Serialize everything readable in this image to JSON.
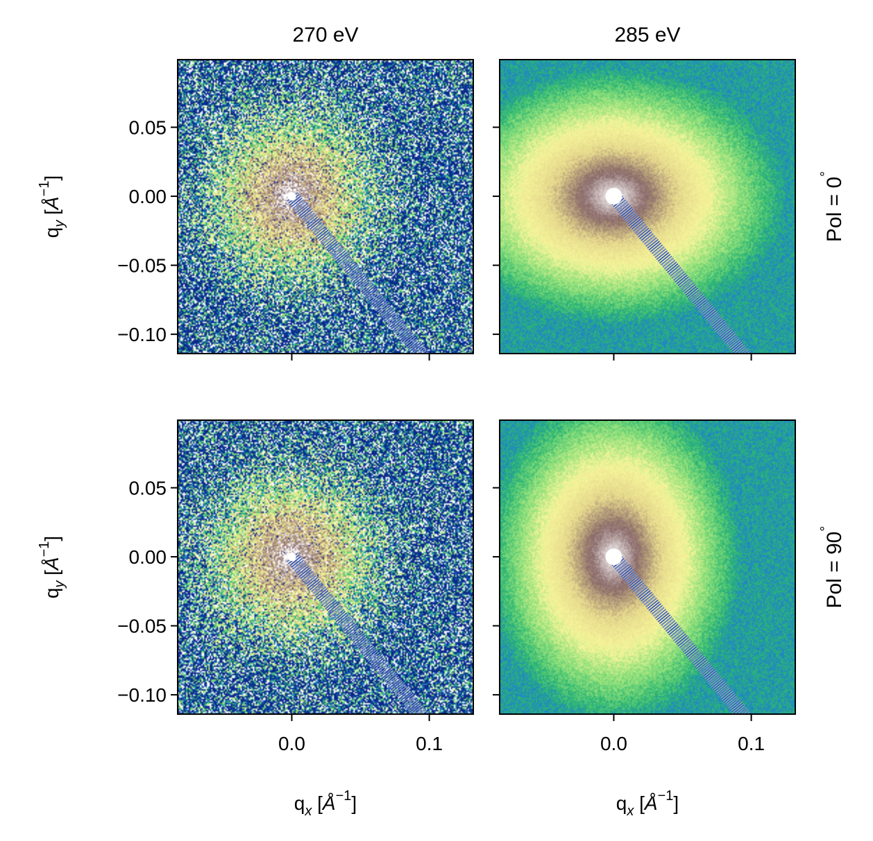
{
  "chart_data": {
    "type": "heatmap",
    "description_layout": "2x2 grid of small-angle scattering detector images (log intensity)",
    "column_titles": [
      "270 eV",
      "285 eV"
    ],
    "row_titles": [
      "Pol = 0",
      "Pol = 90"
    ],
    "row_title_suffix": "°",
    "xlabel": {
      "main": "q",
      "sub": "x",
      "unit_open": " [",
      "unit": "Å",
      "exp": "−1",
      "unit_close": "]"
    },
    "ylabel": {
      "main": "q",
      "sub": "y",
      "unit_open": " [",
      "unit": "Å",
      "exp": "−1",
      "unit_close": "]"
    },
    "xlim": [
      -0.083,
      0.132
    ],
    "ylim": [
      -0.114,
      0.099
    ],
    "xticks": [
      0.0,
      0.1
    ],
    "xtick_labels": [
      "0.0",
      "0.1"
    ],
    "yticks": [
      0.05,
      0.0,
      -0.05,
      -0.1
    ],
    "ytick_labels": [
      "0.05",
      "0.00",
      "−0.05",
      "−0.10"
    ],
    "beamstop": {
      "start": [
        0.0,
        0.0
      ],
      "end": [
        0.097,
        -0.118
      ]
    },
    "colormap": [
      "#0b2a8c",
      "#1f7fd0",
      "#2bb673",
      "#8fe07a",
      "#f6f59a",
      "#e6d98d",
      "#8a6a6a",
      "#ffffff"
    ],
    "panels": [
      {
        "row": 0,
        "col": 0,
        "energy": "270 eV",
        "polarization_deg": 0,
        "pattern": "isotropic-ring",
        "noise": 0.85
      },
      {
        "row": 0,
        "col": 1,
        "energy": "285 eV",
        "polarization_deg": 0,
        "pattern": "horizontal-lobes",
        "noise": 0.15
      },
      {
        "row": 1,
        "col": 0,
        "energy": "270 eV",
        "polarization_deg": 90,
        "pattern": "isotropic-ring",
        "noise": 0.85
      },
      {
        "row": 1,
        "col": 1,
        "energy": "285 eV",
        "polarization_deg": 90,
        "pattern": "vertical-lobes",
        "noise": 0.15
      }
    ]
  }
}
